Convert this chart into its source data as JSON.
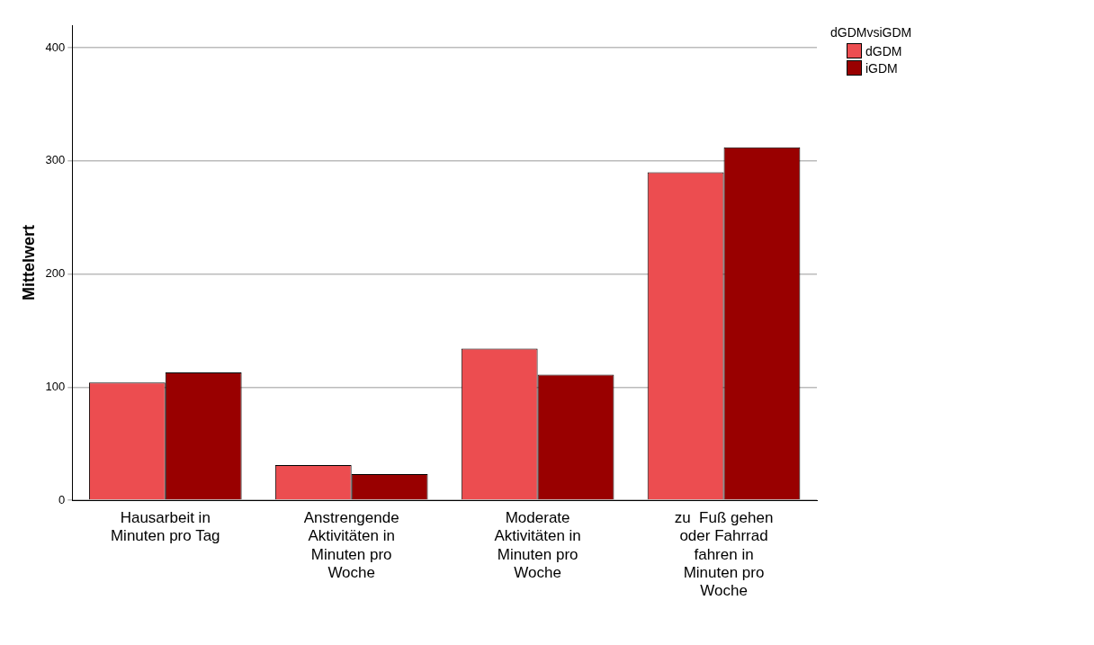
{
  "chart_data": {
    "type": "bar",
    "ylabel": "Mittelwert",
    "legend_title": "dGDMvsiGDM",
    "categories": [
      "Hausarbeit in Minuten pro Tag",
      "Anstrengende Aktivitäten in Minuten pro Woche",
      "Moderate Aktivitäten in Minuten pro Woche",
      "zu  Fuß gehen oder Fahrrad fahren in Minuten pro Woche"
    ],
    "series": [
      {
        "name": "dGDM",
        "color": "#ec4d50",
        "values": [
          104,
          31,
          134,
          290
        ]
      },
      {
        "name": "iGDM",
        "color": "#990000",
        "values": [
          113,
          23,
          111,
          312
        ]
      }
    ],
    "ylim": [
      0,
      420
    ],
    "yticks": [
      0,
      100,
      200,
      300,
      400
    ],
    "grid": "y",
    "legend": "top right"
  }
}
